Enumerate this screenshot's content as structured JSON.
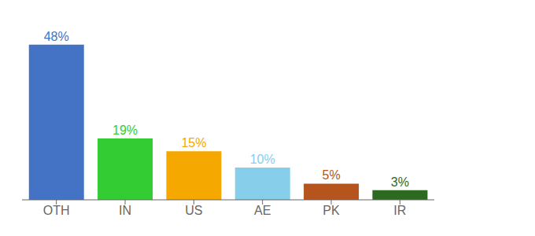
{
  "chart_data": {
    "type": "bar",
    "categories": [
      "OTH",
      "IN",
      "US",
      "AE",
      "PK",
      "IR"
    ],
    "values": [
      48,
      19,
      15,
      10,
      5,
      3
    ],
    "value_labels": [
      "48%",
      "19%",
      "15%",
      "10%",
      "5%",
      "3%"
    ],
    "colors": [
      "#4472c4",
      "#33cc33",
      "#f5a800",
      "#87ceeb",
      "#b5541c",
      "#2d6a1f"
    ],
    "ylim": [
      0,
      54
    ],
    "data_labels": true,
    "tick_labels": "x",
    "grid": false
  }
}
